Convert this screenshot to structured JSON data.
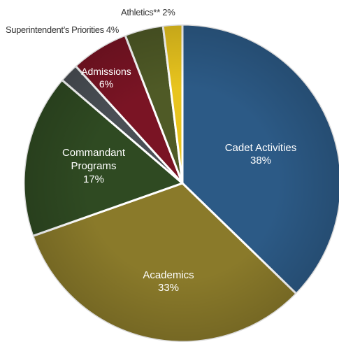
{
  "chart_data": {
    "type": "pie",
    "title": "",
    "slices": [
      {
        "name": "Cadet Activities",
        "value": 38,
        "label": "38%",
        "color": "#2c5a86"
      },
      {
        "name": "Academics",
        "value": 33,
        "label": "33%",
        "color": "#8a7a2a"
      },
      {
        "name": "Commandant Programs",
        "value": 17,
        "label": "17%",
        "color": "#2f4a22"
      },
      {
        "name": "Unlabeled",
        "value": 2,
        "label": "",
        "color": "#4a4f55"
      },
      {
        "name": "Admissions",
        "value": 6,
        "label": "6%",
        "color": "#7a1424"
      },
      {
        "name": "Superintendent's Priorities",
        "value": 4,
        "label": "4%",
        "color": "#4f5a26"
      },
      {
        "name": "Athletics**",
        "value": 2,
        "label": "2%",
        "color": "#e8c41e"
      }
    ],
    "display_labels": {
      "cadet": {
        "line1": "Cadet Activities",
        "line2": "38%"
      },
      "academics": {
        "line1": "Academics",
        "line2": "33%"
      },
      "commandant": {
        "line1": "Commandant",
        "line2": "Programs",
        "line3": "17%"
      },
      "admissions": {
        "line1": "Admissions",
        "line2": "6%"
      },
      "superintendent": "Superintendent’s Priorities 4%",
      "athletics": "Athletics** 2%"
    }
  }
}
